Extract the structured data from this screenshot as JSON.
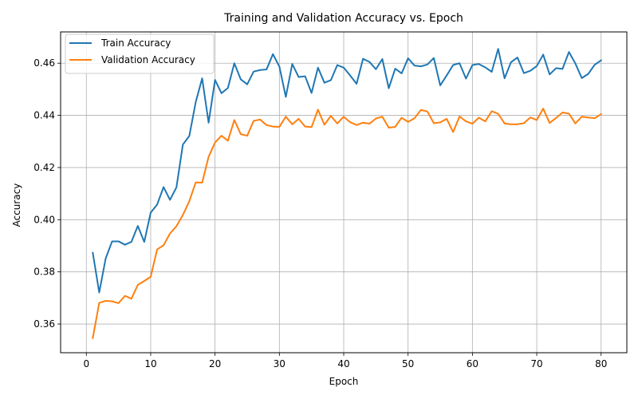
{
  "chart_data": {
    "type": "line",
    "title": "Training and Validation Accuracy vs. Epoch",
    "xlabel": "Epoch",
    "ylabel": "Accuracy",
    "xlim": [
      -4,
      84
    ],
    "ylim": [
      0.349,
      0.472
    ],
    "xticks": [
      0,
      10,
      20,
      30,
      40,
      50,
      60,
      70,
      80
    ],
    "yticks": [
      0.36,
      0.38,
      0.4,
      0.42,
      0.44,
      0.46
    ],
    "ytick_labels": [
      "0.36",
      "0.38",
      "0.40",
      "0.42",
      "0.44",
      "0.46"
    ],
    "grid": true,
    "legend_position": "top-left",
    "x": [
      1,
      2,
      3,
      4,
      5,
      6,
      7,
      8,
      9,
      10,
      11,
      12,
      13,
      14,
      15,
      16,
      17,
      18,
      19,
      20,
      21,
      22,
      23,
      24,
      25,
      26,
      27,
      28,
      29,
      30,
      31,
      32,
      33,
      34,
      35,
      36,
      37,
      38,
      39,
      40,
      41,
      42,
      43,
      44,
      45,
      46,
      47,
      48,
      49,
      50,
      51,
      52,
      53,
      54,
      55,
      56,
      57,
      58,
      59,
      60,
      61,
      62,
      63,
      64,
      65,
      66,
      67,
      68,
      69,
      70,
      71,
      72,
      73,
      74,
      75,
      76,
      77,
      78,
      79,
      80
    ],
    "series": [
      {
        "name": "Train Accuracy",
        "color": "#1f77b4",
        "values": [
          0.3873,
          0.3721,
          0.3851,
          0.3917,
          0.3917,
          0.3904,
          0.3915,
          0.3976,
          0.3915,
          0.4027,
          0.4058,
          0.4125,
          0.4076,
          0.4124,
          0.4288,
          0.4321,
          0.4451,
          0.4542,
          0.4372,
          0.4536,
          0.4485,
          0.4505,
          0.46,
          0.4538,
          0.4519,
          0.4568,
          0.4574,
          0.4576,
          0.4635,
          0.4587,
          0.4471,
          0.4597,
          0.4547,
          0.455,
          0.4486,
          0.4583,
          0.4525,
          0.4535,
          0.4593,
          0.4583,
          0.4553,
          0.4521,
          0.4617,
          0.4605,
          0.4577,
          0.4616,
          0.4504,
          0.4579,
          0.4561,
          0.4619,
          0.4591,
          0.4588,
          0.4595,
          0.462,
          0.4515,
          0.4553,
          0.4593,
          0.46,
          0.4541,
          0.4593,
          0.4597,
          0.4584,
          0.4567,
          0.4655,
          0.4542,
          0.4604,
          0.4622,
          0.4562,
          0.4571,
          0.4589,
          0.4633,
          0.4557,
          0.4581,
          0.4578,
          0.4643,
          0.4599,
          0.4543,
          0.4559,
          0.4594,
          0.4611
        ]
      },
      {
        "name": "Validation Accuracy",
        "color": "#ff7f0e",
        "values": [
          0.3546,
          0.3681,
          0.3689,
          0.3687,
          0.368,
          0.3708,
          0.3697,
          0.375,
          0.3765,
          0.3781,
          0.3886,
          0.3902,
          0.3947,
          0.3975,
          0.4018,
          0.4071,
          0.4143,
          0.4142,
          0.4241,
          0.4296,
          0.4322,
          0.4303,
          0.4382,
          0.4328,
          0.4322,
          0.4379,
          0.4384,
          0.4363,
          0.4357,
          0.4356,
          0.4395,
          0.4366,
          0.4387,
          0.4357,
          0.4355,
          0.4422,
          0.4364,
          0.4398,
          0.4369,
          0.4395,
          0.4374,
          0.4363,
          0.4372,
          0.4368,
          0.4388,
          0.4395,
          0.4353,
          0.4356,
          0.4391,
          0.4375,
          0.4389,
          0.4421,
          0.4415,
          0.437,
          0.4373,
          0.4387,
          0.4336,
          0.4396,
          0.4377,
          0.4368,
          0.4391,
          0.4377,
          0.4416,
          0.4406,
          0.4369,
          0.4366,
          0.4366,
          0.437,
          0.4392,
          0.4382,
          0.4426,
          0.4371,
          0.439,
          0.4411,
          0.4407,
          0.4369,
          0.4395,
          0.4392,
          0.4389,
          0.4405
        ]
      }
    ]
  }
}
